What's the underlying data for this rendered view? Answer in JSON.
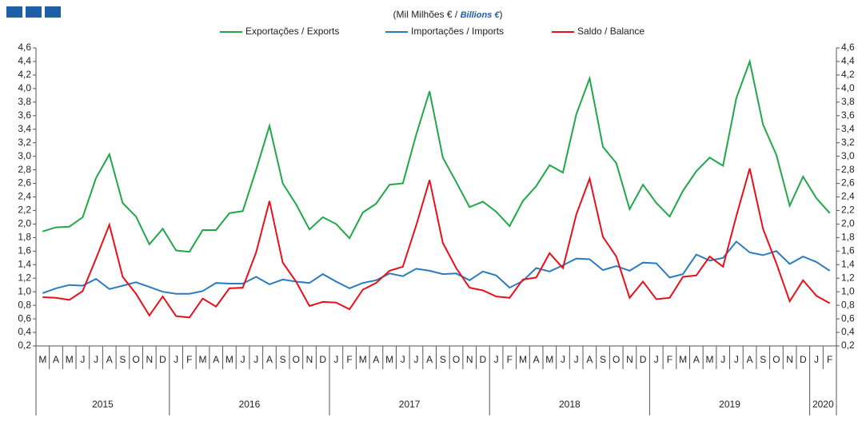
{
  "chart_data": {
    "type": "line",
    "subtitle_parts": [
      "(Mil Milhões € / ",
      "Billions  €",
      ")"
    ],
    "categories": [
      "M",
      "A",
      "M",
      "J",
      "J",
      "A",
      "S",
      "O",
      "N",
      "D",
      "J",
      "F",
      "M",
      "A",
      "M",
      "J",
      "J",
      "A",
      "S",
      "O",
      "N",
      "D",
      "J",
      "F",
      "M",
      "A",
      "M",
      "J",
      "J",
      "A",
      "S",
      "O",
      "N",
      "D",
      "J",
      "F",
      "M",
      "A",
      "M",
      "J",
      "J",
      "A",
      "S",
      "O",
      "N",
      "D",
      "J",
      "F",
      "M",
      "A",
      "M",
      "J",
      "J",
      "A",
      "S",
      "O",
      "N",
      "D",
      "J",
      "F"
    ],
    "years": [
      "2015",
      "2016",
      "2017",
      "2018",
      "2019",
      "2020"
    ],
    "series": [
      {
        "name": "Exportações / Exports",
        "color": "#1fa84a",
        "values": [
          1.89,
          1.95,
          1.96,
          2.1,
          2.68,
          3.03,
          2.31,
          2.11,
          1.7,
          1.93,
          1.61,
          1.59,
          1.91,
          1.91,
          2.16,
          2.19,
          2.8,
          3.45,
          2.6,
          2.29,
          1.92,
          2.1,
          2.0,
          1.79,
          2.17,
          2.3,
          2.58,
          2.6,
          3.32,
          3.96,
          2.98,
          2.62,
          2.25,
          2.33,
          2.18,
          1.97,
          2.34,
          2.56,
          2.87,
          2.76,
          3.62,
          4.15,
          3.14,
          2.9,
          2.22,
          2.58,
          2.31,
          2.11,
          2.49,
          2.78,
          2.98,
          2.86,
          3.86,
          4.4,
          3.47,
          3.02,
          2.27,
          2.7,
          2.38,
          2.16
        ]
      },
      {
        "name": "Importações / Imports",
        "color": "#2a7bbf",
        "values": [
          0.98,
          1.05,
          1.1,
          1.09,
          1.19,
          1.04,
          1.09,
          1.14,
          1.07,
          1.0,
          0.97,
          0.97,
          1.01,
          1.13,
          1.12,
          1.12,
          1.22,
          1.11,
          1.18,
          1.15,
          1.13,
          1.26,
          1.15,
          1.05,
          1.13,
          1.17,
          1.27,
          1.23,
          1.34,
          1.31,
          1.26,
          1.27,
          1.17,
          1.3,
          1.24,
          1.06,
          1.16,
          1.35,
          1.3,
          1.39,
          1.49,
          1.48,
          1.32,
          1.38,
          1.31,
          1.43,
          1.42,
          1.21,
          1.26,
          1.55,
          1.46,
          1.5,
          1.74,
          1.58,
          1.54,
          1.6,
          1.41,
          1.52,
          1.44,
          1.31
        ]
      },
      {
        "name": "Saldo / Balance",
        "color": "#e8101b",
        "values": [
          0.92,
          0.91,
          0.88,
          1.01,
          1.49,
          1.99,
          1.22,
          0.97,
          0.65,
          0.93,
          0.64,
          0.62,
          0.9,
          0.78,
          1.05,
          1.06,
          1.58,
          2.34,
          1.43,
          1.15,
          0.79,
          0.85,
          0.84,
          0.74,
          1.03,
          1.13,
          1.31,
          1.37,
          1.98,
          2.65,
          1.72,
          1.35,
          1.06,
          1.02,
          0.93,
          0.91,
          1.18,
          1.21,
          1.57,
          1.35,
          2.14,
          2.67,
          1.81,
          1.52,
          0.91,
          1.15,
          0.89,
          0.91,
          1.22,
          1.24,
          1.52,
          1.37,
          2.12,
          2.82,
          1.93,
          1.42,
          0.86,
          1.17,
          0.94,
          0.83
        ]
      }
    ],
    "ylim": [
      0.2,
      4.6
    ],
    "yticks": [
      {
        "value": 0.2,
        "label": "0,2"
      },
      {
        "value": 0.4,
        "label": "0,4"
      },
      {
        "value": 0.6,
        "label": "0,6"
      },
      {
        "value": 0.8,
        "label": "0,8"
      },
      {
        "value": 1.0,
        "label": "1,0"
      },
      {
        "value": 1.2,
        "label": "1,2"
      },
      {
        "value": 1.4,
        "label": "1,4"
      },
      {
        "value": 1.6,
        "label": "1,6"
      },
      {
        "value": 1.8,
        "label": "1,8"
      },
      {
        "value": 2.0,
        "label": "2,0"
      },
      {
        "value": 2.2,
        "label": "2,2"
      },
      {
        "value": 2.4,
        "label": "2,4"
      },
      {
        "value": 2.6,
        "label": "2,6"
      },
      {
        "value": 2.8,
        "label": "2,8"
      },
      {
        "value": 3.0,
        "label": "3,0"
      },
      {
        "value": 3.2,
        "label": "3,2"
      },
      {
        "value": 3.4,
        "label": "3,4"
      },
      {
        "value": 3.6,
        "label": "3,6"
      },
      {
        "value": 3.8,
        "label": "3,8"
      },
      {
        "value": 4.0,
        "label": "4,0"
      },
      {
        "value": 4.2,
        "label": "4,2"
      },
      {
        "value": 4.4,
        "label": "4,4"
      },
      {
        "value": 4.6,
        "label": "4,6"
      }
    ],
    "legend": "top"
  }
}
